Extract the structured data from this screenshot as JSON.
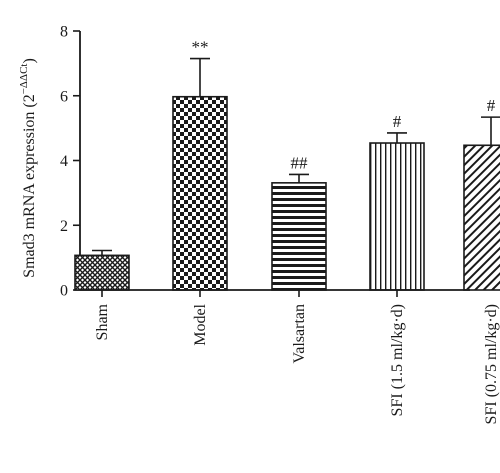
{
  "chart_data": {
    "type": "bar",
    "title": "",
    "xlabel": "",
    "ylabel": {
      "main": "Smad3 mRNA expression (2",
      "sup_prefix": "−ΔΔ",
      "sup_ct": "Ct",
      "suffix": ")"
    },
    "ylim": [
      0,
      8
    ],
    "yticks": [
      "0",
      "2",
      "4",
      "6",
      "8"
    ],
    "grid": false,
    "categories": [
      "Sham",
      "Model",
      "Valsartan",
      "SFI (1.5 ml/kg·d)",
      "SFI (0.75 ml/kg·d)"
    ],
    "values": [
      1.07,
      5.97,
      3.31,
      4.54,
      4.47
    ],
    "error_upper": [
      0.15,
      1.18,
      0.26,
      0.31,
      0.87
    ],
    "annotations": [
      "",
      "**",
      "##",
      "#",
      "#"
    ],
    "patterns": [
      "crosshatch",
      "checker",
      "hstripes",
      "vstripes",
      "diagonal"
    ],
    "colors": {
      "ink": "#1a1a1a",
      "background": "#ffffff"
    }
  }
}
